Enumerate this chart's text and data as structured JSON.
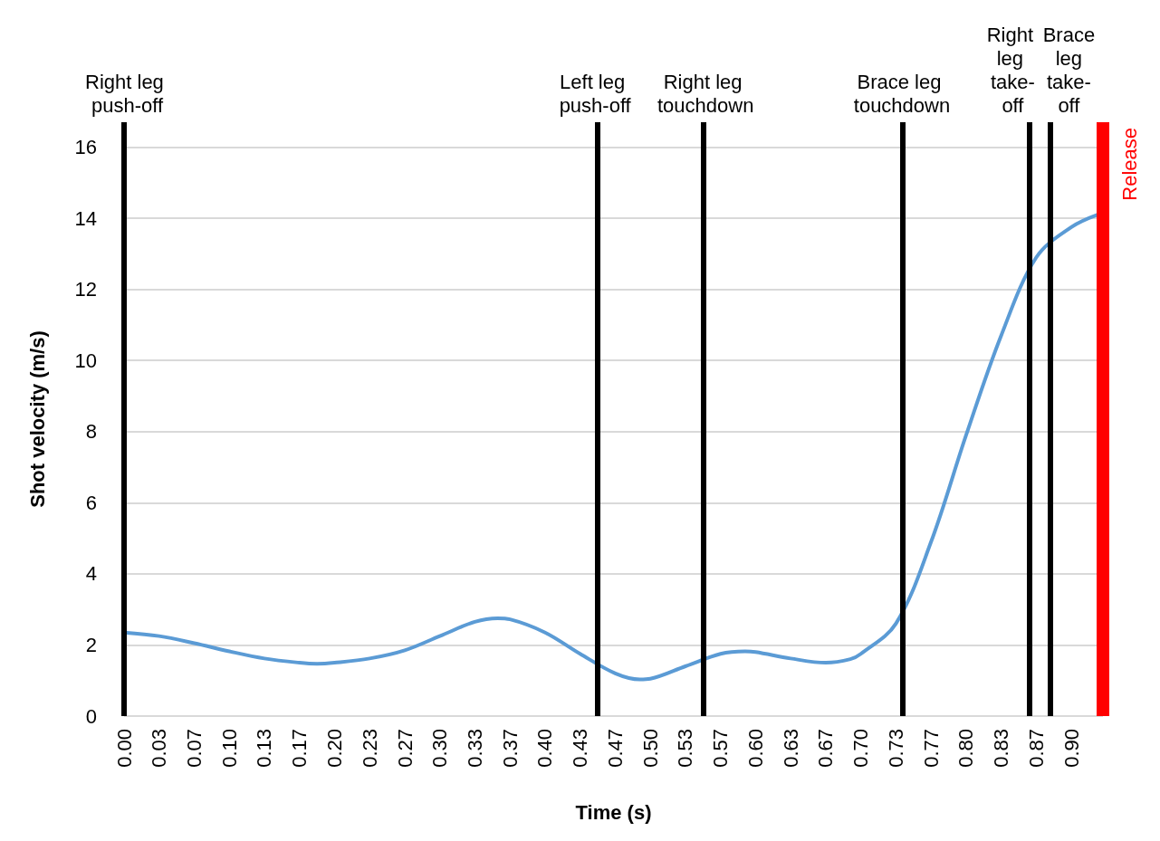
{
  "chart_data": {
    "type": "line",
    "xlabel": "Time (s)",
    "ylabel": "Shot velocity (m/s)",
    "x": [
      0,
      0.0333,
      0.0667,
      0.1,
      0.1333,
      0.1667,
      0.1833,
      0.2,
      0.2333,
      0.2667,
      0.3,
      0.3333,
      0.355,
      0.3667,
      0.4,
      0.4333,
      0.4667,
      0.49,
      0.5,
      0.5333,
      0.5667,
      0.59,
      0.6,
      0.6333,
      0.6667,
      0.69,
      0.7,
      0.7333,
      0.7667,
      0.8,
      0.8333,
      0.8667,
      0.9,
      0.925
    ],
    "series": [
      {
        "color": "#5b9bd5",
        "values": [
          2.35,
          2.25,
          2.05,
          1.82,
          1.62,
          1.5,
          1.47,
          1.5,
          1.62,
          1.85,
          2.25,
          2.65,
          2.75,
          2.72,
          2.35,
          1.75,
          1.2,
          1.03,
          1.05,
          1.4,
          1.75,
          1.82,
          1.8,
          1.62,
          1.5,
          1.6,
          1.75,
          2.6,
          4.9,
          7.9,
          10.7,
          12.9,
          13.75,
          14.1
        ]
      }
    ],
    "xlim": [
      0,
      0.93
    ],
    "xticks": [
      {
        "value": 0,
        "label": "0.00"
      },
      {
        "value": 0.0333,
        "label": "0.03"
      },
      {
        "value": 0.0667,
        "label": "0.07"
      },
      {
        "value": 0.1,
        "label": "0.10"
      },
      {
        "value": 0.1333,
        "label": "0.13"
      },
      {
        "value": 0.1667,
        "label": "0.17"
      },
      {
        "value": 0.2,
        "label": "0.20"
      },
      {
        "value": 0.2333,
        "label": "0.23"
      },
      {
        "value": 0.2667,
        "label": "0.27"
      },
      {
        "value": 0.3,
        "label": "0.30"
      },
      {
        "value": 0.3333,
        "label": "0.33"
      },
      {
        "value": 0.3667,
        "label": "0.37"
      },
      {
        "value": 0.4,
        "label": "0.40"
      },
      {
        "value": 0.4333,
        "label": "0.43"
      },
      {
        "value": 0.4667,
        "label": "0.47"
      },
      {
        "value": 0.5,
        "label": "0.50"
      },
      {
        "value": 0.5333,
        "label": "0.53"
      },
      {
        "value": 0.5667,
        "label": "0.57"
      },
      {
        "value": 0.6,
        "label": "0.60"
      },
      {
        "value": 0.6333,
        "label": "0.63"
      },
      {
        "value": 0.6667,
        "label": "0.67"
      },
      {
        "value": 0.7,
        "label": "0.70"
      },
      {
        "value": 0.7333,
        "label": "0.73"
      },
      {
        "value": 0.7667,
        "label": "0.77"
      },
      {
        "value": 0.8,
        "label": "0.80"
      },
      {
        "value": 0.8333,
        "label": "0.83"
      },
      {
        "value": 0.8667,
        "label": "0.87"
      },
      {
        "value": 0.9,
        "label": "0.90"
      }
    ],
    "ylim": [
      0,
      16.7
    ],
    "yticks": [
      0,
      2,
      4,
      6,
      8,
      10,
      12,
      14,
      16
    ],
    "grid": "y",
    "marker": "none",
    "line_style": "solid",
    "ref_lines": [
      {
        "axis": "x",
        "value": 0.003,
        "label": "Right leg push-off",
        "color": "#000000"
      },
      {
        "axis": "x",
        "value": 0.449,
        "label": "Left leg push-off",
        "color": "#000000"
      },
      {
        "axis": "x",
        "value": 0.551,
        "label": "Right leg touchdown",
        "color": "#000000"
      },
      {
        "axis": "x",
        "value": 0.739,
        "label": "Brace leg touchdown",
        "color": "#000000"
      },
      {
        "axis": "x",
        "value": 0.86,
        "label": "Right leg take-off",
        "color": "#000000"
      },
      {
        "axis": "x",
        "value": 0.882,
        "label": "Brace leg take-off",
        "color": "#000000"
      },
      {
        "axis": "x",
        "value": 0.927,
        "label": "Release",
        "color": "#ff0000"
      }
    ]
  }
}
